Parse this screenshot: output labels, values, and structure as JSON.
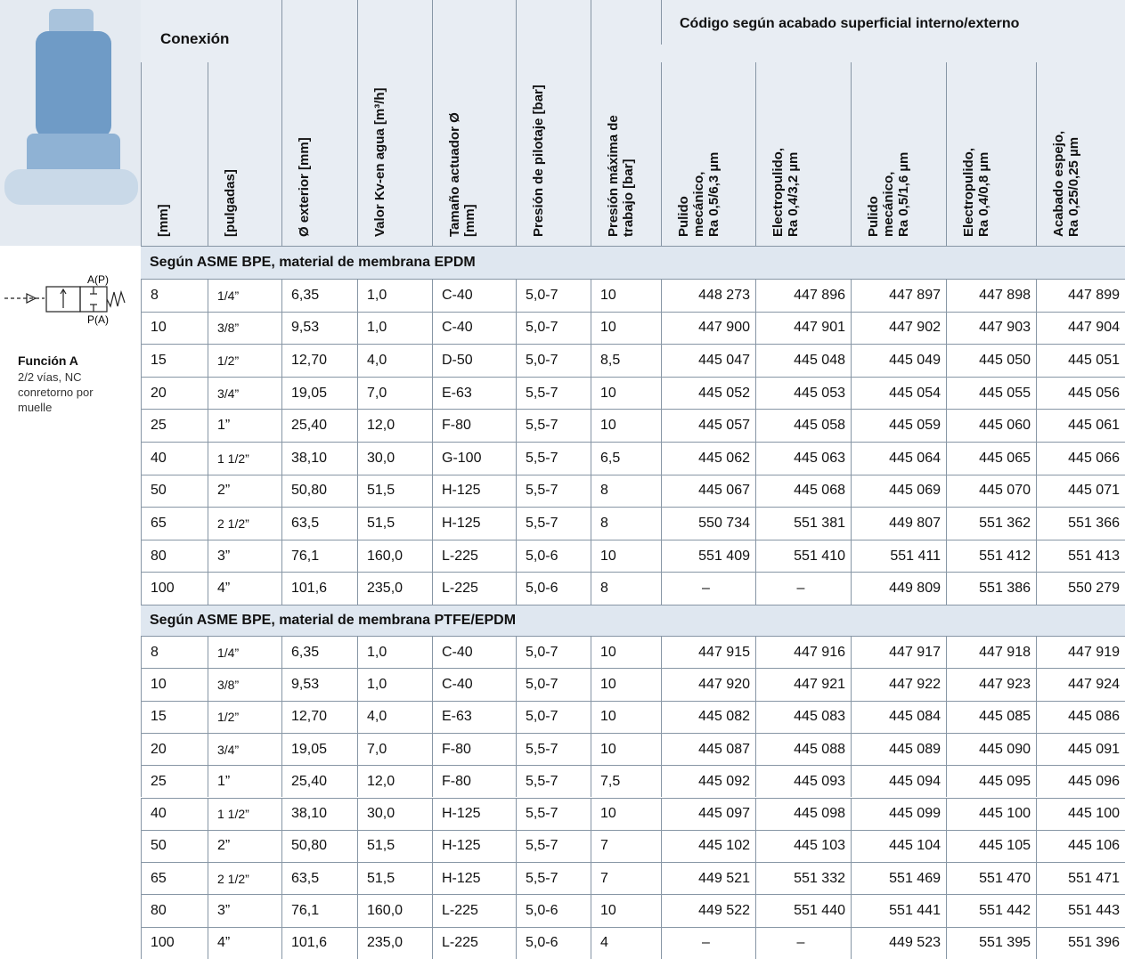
{
  "header": {
    "conexion": "Conexión",
    "codigo": "Código según acabado superficial interno/externo",
    "columns": [
      "[mm]",
      "[pulgadas]",
      "Ø exterior [mm]",
      "Valor Kv-en agua [m³/h]",
      "Tamaño actuador Ø\n[mm]",
      "Presión de pilotaje [bar]",
      "Presión máxima de\ntrabajo [bar]",
      "Pulido\nmecánico,\nRa  0,5/6,3 µm",
      "Electropulido,\nRa  0,4/3,2 µm",
      "Pulido\nmecánico,\nRa  0,5/1,6 µm",
      "Electropulido,\nRa  0,4/0,8 µm",
      "Acabado espejo,\nRa  0,25/0,25 µm"
    ]
  },
  "function": {
    "symbol_labels": [
      "A(P)",
      "P(A)"
    ],
    "title": "Función A",
    "description": "2/2 vías, NC\nconretorno por\nmuelle"
  },
  "sections": [
    {
      "title": "Según ASME BPE, material de membrana EPDM",
      "rows": [
        [
          "8",
          "1/4”",
          "6,35",
          "1,0",
          "C-40",
          "5,0-7",
          "10",
          "448 273",
          "447 896",
          "447 897",
          "447 898",
          "447 899"
        ],
        [
          "10",
          "3/8”",
          "9,53",
          "1,0",
          "C-40",
          "5,0-7",
          "10",
          "447 900",
          "447 901",
          "447 902",
          "447 903",
          "447 904"
        ],
        [
          "15",
          "1/2”",
          "12,70",
          "4,0",
          "D-50",
          "5,0-7",
          "8,5",
          "445 047",
          "445 048",
          "445 049",
          "445 050",
          "445 051"
        ],
        [
          "20",
          "3/4”",
          "19,05",
          "7,0",
          "E-63",
          "5,5-7",
          "10",
          "445 052",
          "445 053",
          "445 054",
          "445 055",
          "445 056"
        ],
        [
          "25",
          "1”",
          "25,40",
          "12,0",
          "F-80",
          "5,5-7",
          "10",
          "445 057",
          "445 058",
          "445 059",
          "445 060",
          "445 061"
        ],
        [
          "40",
          "1 1/2”",
          "38,10",
          "30,0",
          "G-100",
          "5,5-7",
          "6,5",
          "445 062",
          "445 063",
          "445 064",
          "445 065",
          "445 066"
        ],
        [
          "50",
          "2”",
          "50,80",
          "51,5",
          "H-125",
          "5,5-7",
          "8",
          "445 067",
          "445 068",
          "445 069",
          "445 070",
          "445 071"
        ],
        [
          "65",
          "2 1/2”",
          "63,5",
          "51,5",
          "H-125",
          "5,5-7",
          "8",
          "550 734",
          "551 381",
          "449 807",
          "551 362",
          "551 366"
        ],
        [
          "80",
          "3”",
          "76,1",
          "160,0",
          "L-225",
          "5,0-6",
          "10",
          "551 409",
          "551 410",
          "551 411",
          "551 412",
          "551 413"
        ],
        [
          "100",
          "4”",
          "101,6",
          "235,0",
          "L-225",
          "5,0-6",
          "8",
          "–",
          "–",
          "449 809",
          "551 386",
          "550 279"
        ]
      ]
    },
    {
      "title": "Según ASME BPE, material de membrana PTFE/EPDM",
      "rows": [
        [
          "8",
          "1/4”",
          "6,35",
          "1,0",
          "C-40",
          "5,0-7",
          "10",
          "447 915",
          "447 916",
          "447 917",
          "447 918",
          "447 919"
        ],
        [
          "10",
          "3/8”",
          "9,53",
          "1,0",
          "C-40",
          "5,0-7",
          "10",
          "447 920",
          "447 921",
          "447 922",
          "447 923",
          "447 924"
        ],
        [
          "15",
          "1/2”",
          "12,70",
          "4,0",
          "E-63",
          "5,0-7",
          "10",
          "445 082",
          "445 083",
          "445 084",
          "445 085",
          "445 086"
        ],
        [
          "20",
          "3/4”",
          "19,05",
          "7,0",
          "F-80",
          "5,5-7",
          "10",
          "445 087",
          "445 088",
          "445 089",
          "445 090",
          "445 091"
        ],
        [
          "25",
          "1”",
          "25,40",
          "12,0",
          "F-80",
          "5,5-7",
          "7,5",
          "445 092",
          "445 093",
          "445 094",
          "445 095",
          "445 096"
        ],
        [
          "40",
          "1 1/2”",
          "38,10",
          "30,0",
          "H-125",
          "5,5-7",
          "10",
          "445 097",
          "445 098",
          "445 099",
          "445 100",
          "445 100"
        ],
        [
          "50",
          "2”",
          "50,80",
          "51,5",
          "H-125",
          "5,5-7",
          "7",
          "445 102",
          "445 103",
          "445 104",
          "445 105",
          "445 106"
        ],
        [
          "65",
          "2 1/2”",
          "63,5",
          "51,5",
          "H-125",
          "5,5-7",
          "7",
          "449 521",
          "551 332",
          "551 469",
          "551 470",
          "551 471"
        ],
        [
          "80",
          "3”",
          "76,1",
          "160,0",
          "L-225",
          "5,0-6",
          "10",
          "449 522",
          "551 440",
          "551 441",
          "551 442",
          "551 443"
        ],
        [
          "100",
          "4”",
          "101,6",
          "235,0",
          "L-225",
          "5,0-6",
          "4",
          "–",
          "–",
          "449 523",
          "551 395",
          "551 396"
        ]
      ]
    }
  ]
}
